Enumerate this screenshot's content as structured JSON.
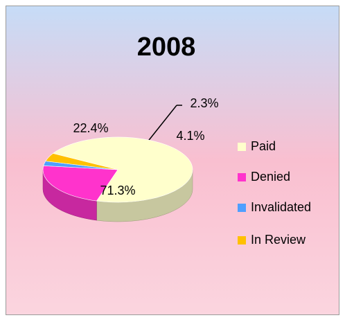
{
  "chart_data": {
    "type": "pie",
    "title": "2008",
    "categories": [
      "Paid",
      "Denied",
      "Invalidated",
      "In Review"
    ],
    "values": [
      71.3,
      22.4,
      2.3,
      4.1
    ],
    "value_labels": [
      "71.3%",
      "22.4%",
      "2.3%",
      "4.1%"
    ],
    "colors": [
      "#ffffcc",
      "#ff33cc",
      "#4f9fff",
      "#ffc000"
    ],
    "legend": "right"
  }
}
